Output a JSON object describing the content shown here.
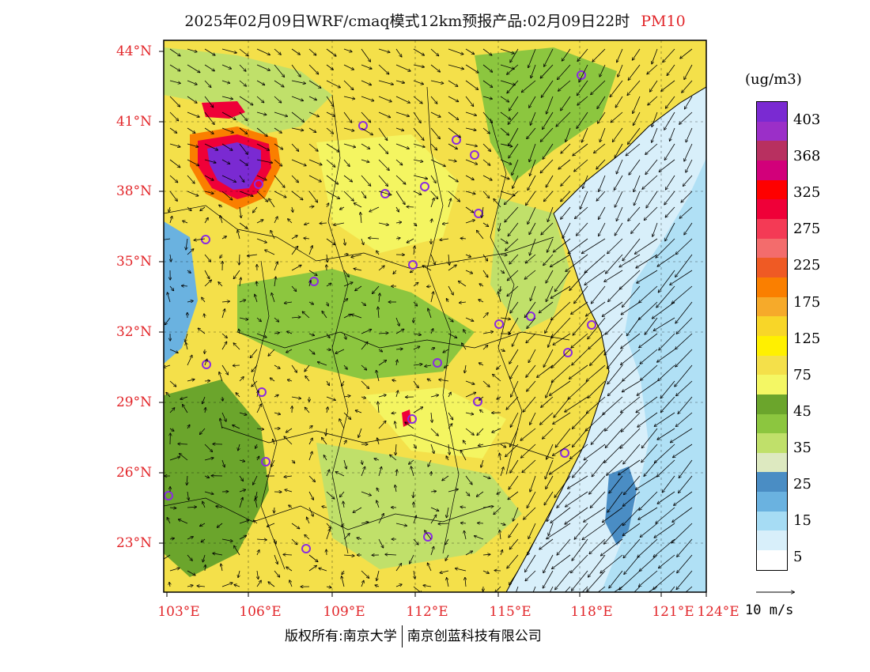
{
  "header": {
    "title": "2025年02月09日WRF/cmaq模式12km预报产品:02月09日22时",
    "variable": "PM10"
  },
  "map": {
    "lat_labels": [
      "44°N",
      "41°N",
      "38°N",
      "35°N",
      "32°N",
      "29°N",
      "26°N",
      "23°N"
    ],
    "lon_labels": [
      "103°E",
      "106°E",
      "109°E",
      "112°E",
      "115°E",
      "118°E",
      "121°E",
      "124°E"
    ]
  },
  "legend": {
    "unit": "(ug/m3)",
    "levels": [
      "5",
      "15",
      "25",
      "35",
      "45",
      "75",
      "125",
      "175",
      "225",
      "275",
      "325",
      "368",
      "403"
    ],
    "colors": [
      "#ffffff",
      "#d8effa",
      "#a6dcf4",
      "#6ab2e0",
      "#4a8dc4",
      "#dde9c0",
      "#c0e06a",
      "#8cc63f",
      "#6ba52c",
      "#f4f764",
      "#f4e04a",
      "#fff000",
      "#f8d628",
      "#f6aa2a",
      "#fa7f00",
      "#ef5a24",
      "#f36c6c",
      "#f43a55",
      "#ef0038",
      "#fe0000",
      "#d2007a",
      "#b83060",
      "#9b2fc8",
      "#7a2ad2"
    ]
  },
  "wind_key": {
    "label": "10 m/s"
  },
  "footer": {
    "copyright_left": "版权所有:南京大学",
    "copyright_right": "南京创蓝科技有限公司"
  }
}
